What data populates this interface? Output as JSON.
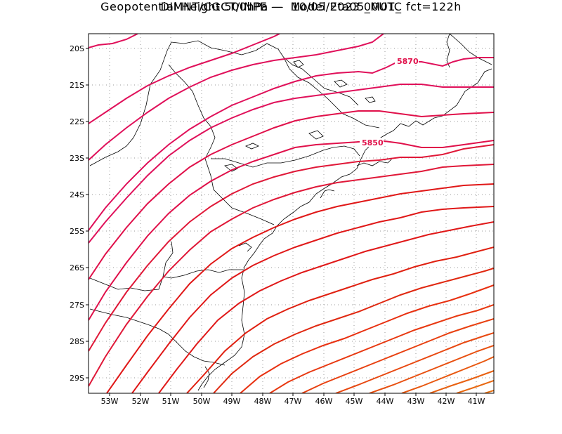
{
  "title": {
    "line1": "DIMNT/CGCT/INPE —  Model Eta05_M01_",
    "line2": "Geopotential Height 500hPa —  10/05/2023 00UTC fct=122h"
  },
  "axes": {
    "lat_labels": [
      "20S",
      "21S",
      "22S",
      "23S",
      "24S",
      "25S",
      "26S",
      "27S",
      "28S",
      "29S"
    ],
    "lon_labels": [
      "53W",
      "52W",
      "51W",
      "50W",
      "49W",
      "48W",
      "47W",
      "46W",
      "45W",
      "44W",
      "43W",
      "42W",
      "41W"
    ]
  },
  "contour_labels": [
    {
      "text": "5870"
    },
    {
      "text": "5850"
    }
  ],
  "colors": {
    "grid": "#999999",
    "coast": "#000000",
    "high": "#e0105a",
    "mid": "#e01818",
    "low": "#e86010"
  }
}
